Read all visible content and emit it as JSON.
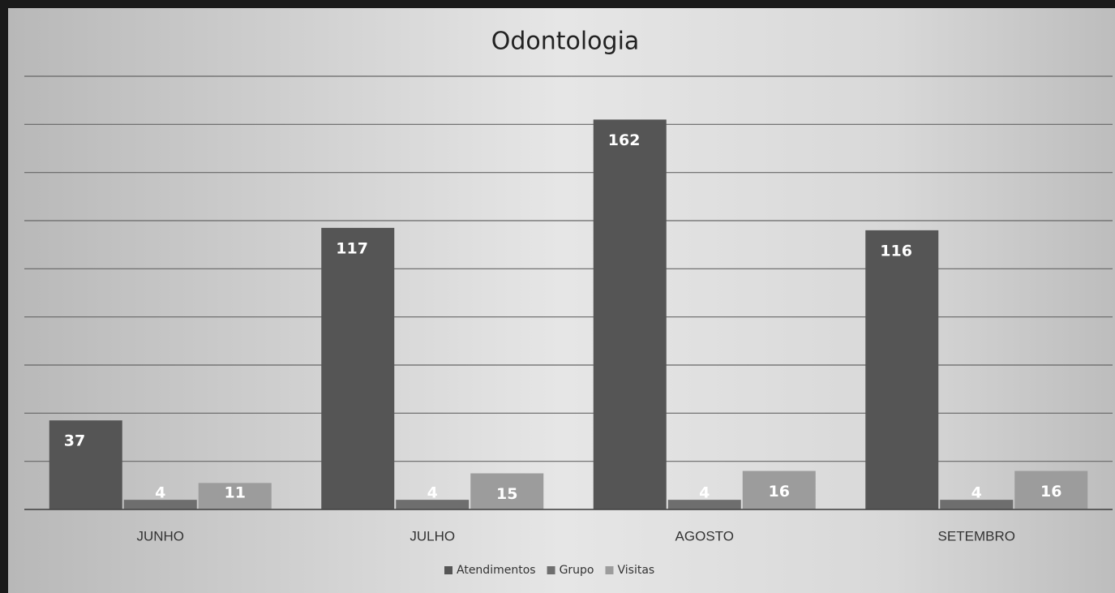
{
  "chart_data": {
    "type": "bar",
    "title": "Odontologia",
    "categories": [
      "JUNHO",
      "JULHO",
      "AGOSTO",
      "SETEMBRO"
    ],
    "series": [
      {
        "name": "Atendimentos",
        "color": "#555555",
        "values": [
          37,
          117,
          162,
          116
        ]
      },
      {
        "name": "Grupo",
        "color": "#6e6e6e",
        "values": [
          4,
          4,
          4,
          4
        ]
      },
      {
        "name": "Visitas",
        "color": "#9c9c9c",
        "values": [
          11,
          15,
          16,
          16
        ]
      }
    ],
    "ylim": [
      0,
      180
    ],
    "yticks": [
      0,
      20,
      40,
      60,
      80,
      100,
      120,
      140,
      160,
      180
    ],
    "grid": true,
    "show_ytick_labels": false,
    "legend": "bottom"
  }
}
